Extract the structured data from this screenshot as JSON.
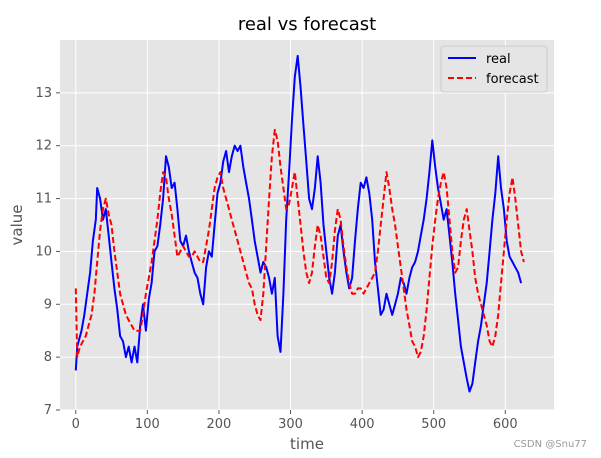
{
  "chart_data": {
    "type": "line",
    "title": "real vs forecast",
    "xlabel": "time",
    "ylabel": "value",
    "xlim": [
      -22,
      668
    ],
    "ylim": [
      7,
      14
    ],
    "xticks": [
      0,
      100,
      200,
      300,
      400,
      500,
      600
    ],
    "yticks": [
      7,
      8,
      9,
      10,
      11,
      12,
      13
    ],
    "grid": true,
    "legend_position": "top-right",
    "series": [
      {
        "name": "real",
        "color": "#0000ff",
        "style": "solid",
        "points": [
          [
            0,
            7.75
          ],
          [
            2,
            8.2
          ],
          [
            8,
            8.5
          ],
          [
            12,
            8.8
          ],
          [
            16,
            9.2
          ],
          [
            20,
            9.6
          ],
          [
            24,
            10.2
          ],
          [
            28,
            10.6
          ],
          [
            30,
            11.2
          ],
          [
            34,
            11.0
          ],
          [
            38,
            10.6
          ],
          [
            42,
            10.8
          ],
          [
            46,
            10.3
          ],
          [
            50,
            9.8
          ],
          [
            54,
            9.3
          ],
          [
            58,
            8.9
          ],
          [
            62,
            8.4
          ],
          [
            66,
            8.3
          ],
          [
            70,
            8.0
          ],
          [
            74,
            8.2
          ],
          [
            78,
            7.9
          ],
          [
            82,
            8.2
          ],
          [
            86,
            7.9
          ],
          [
            90,
            8.6
          ],
          [
            94,
            9.0
          ],
          [
            98,
            8.5
          ],
          [
            102,
            9.1
          ],
          [
            106,
            9.4
          ],
          [
            110,
            10.0
          ],
          [
            114,
            10.1
          ],
          [
            118,
            10.5
          ],
          [
            122,
            11.0
          ],
          [
            126,
            11.8
          ],
          [
            130,
            11.6
          ],
          [
            134,
            11.2
          ],
          [
            138,
            11.3
          ],
          [
            142,
            10.8
          ],
          [
            146,
            10.2
          ],
          [
            150,
            10.1
          ],
          [
            154,
            10.3
          ],
          [
            158,
            10.0
          ],
          [
            162,
            9.8
          ],
          [
            166,
            9.6
          ],
          [
            170,
            9.5
          ],
          [
            174,
            9.2
          ],
          [
            178,
            9.0
          ],
          [
            182,
            9.7
          ],
          [
            186,
            10.0
          ],
          [
            190,
            9.9
          ],
          [
            194,
            10.5
          ],
          [
            198,
            11.1
          ],
          [
            202,
            11.3
          ],
          [
            206,
            11.7
          ],
          [
            210,
            11.9
          ],
          [
            214,
            11.5
          ],
          [
            218,
            11.8
          ],
          [
            222,
            12.0
          ],
          [
            226,
            11.9
          ],
          [
            230,
            12.0
          ],
          [
            234,
            11.6
          ],
          [
            238,
            11.3
          ],
          [
            242,
            11.0
          ],
          [
            246,
            10.6
          ],
          [
            250,
            10.2
          ],
          [
            254,
            9.9
          ],
          [
            258,
            9.6
          ],
          [
            262,
            9.8
          ],
          [
            266,
            9.7
          ],
          [
            270,
            9.5
          ],
          [
            274,
            9.2
          ],
          [
            278,
            9.5
          ],
          [
            282,
            8.4
          ],
          [
            286,
            8.1
          ],
          [
            290,
            9.2
          ],
          [
            294,
            10.6
          ],
          [
            298,
            11.5
          ],
          [
            302,
            12.5
          ],
          [
            306,
            13.3
          ],
          [
            310,
            13.7
          ],
          [
            314,
            13.1
          ],
          [
            318,
            12.4
          ],
          [
            322,
            11.7
          ],
          [
            326,
            11.0
          ],
          [
            330,
            10.8
          ],
          [
            334,
            11.2
          ],
          [
            338,
            11.8
          ],
          [
            342,
            11.3
          ],
          [
            346,
            10.5
          ],
          [
            350,
            10.0
          ],
          [
            354,
            9.5
          ],
          [
            358,
            9.2
          ],
          [
            362,
            9.6
          ],
          [
            366,
            10.3
          ],
          [
            370,
            10.5
          ],
          [
            374,
            10.0
          ],
          [
            378,
            9.6
          ],
          [
            382,
            9.3
          ],
          [
            386,
            9.5
          ],
          [
            390,
            10.2
          ],
          [
            394,
            10.8
          ],
          [
            398,
            11.3
          ],
          [
            402,
            11.2
          ],
          [
            406,
            11.4
          ],
          [
            410,
            11.1
          ],
          [
            414,
            10.6
          ],
          [
            418,
            9.8
          ],
          [
            422,
            9.3
          ],
          [
            426,
            8.8
          ],
          [
            430,
            8.9
          ],
          [
            434,
            9.2
          ],
          [
            438,
            9.0
          ],
          [
            442,
            8.8
          ],
          [
            446,
            9.0
          ],
          [
            450,
            9.2
          ],
          [
            454,
            9.5
          ],
          [
            458,
            9.4
          ],
          [
            462,
            9.2
          ],
          [
            466,
            9.5
          ],
          [
            470,
            9.7
          ],
          [
            474,
            9.8
          ],
          [
            478,
            10.0
          ],
          [
            482,
            10.3
          ],
          [
            486,
            10.6
          ],
          [
            490,
            11.0
          ],
          [
            494,
            11.5
          ],
          [
            498,
            12.1
          ],
          [
            502,
            11.6
          ],
          [
            506,
            11.2
          ],
          [
            510,
            10.9
          ],
          [
            514,
            10.6
          ],
          [
            518,
            10.8
          ],
          [
            522,
            10.3
          ],
          [
            526,
            9.8
          ],
          [
            530,
            9.2
          ],
          [
            534,
            8.7
          ],
          [
            538,
            8.2
          ],
          [
            542,
            7.9
          ],
          [
            546,
            7.6
          ],
          [
            550,
            7.35
          ],
          [
            554,
            7.5
          ],
          [
            558,
            7.9
          ],
          [
            562,
            8.3
          ],
          [
            566,
            8.6
          ],
          [
            570,
            9.0
          ],
          [
            574,
            9.4
          ],
          [
            578,
            10.0
          ],
          [
            582,
            10.6
          ],
          [
            586,
            11.1
          ],
          [
            590,
            11.8
          ],
          [
            594,
            11.2
          ],
          [
            598,
            10.8
          ],
          [
            602,
            10.2
          ],
          [
            606,
            9.9
          ],
          [
            610,
            9.8
          ],
          [
            614,
            9.7
          ],
          [
            618,
            9.6
          ],
          [
            622,
            9.4
          ]
        ]
      },
      {
        "name": "forecast",
        "color": "#ff0000",
        "style": "dashed",
        "points": [
          [
            0,
            9.3
          ],
          [
            2,
            8.0
          ],
          [
            6,
            8.2
          ],
          [
            10,
            8.3
          ],
          [
            14,
            8.4
          ],
          [
            18,
            8.6
          ],
          [
            22,
            8.8
          ],
          [
            26,
            9.2
          ],
          [
            30,
            9.8
          ],
          [
            34,
            10.4
          ],
          [
            38,
            10.8
          ],
          [
            42,
            11.0
          ],
          [
            46,
            10.7
          ],
          [
            50,
            10.5
          ],
          [
            54,
            10.0
          ],
          [
            58,
            9.6
          ],
          [
            62,
            9.2
          ],
          [
            66,
            9.0
          ],
          [
            70,
            8.8
          ],
          [
            74,
            8.7
          ],
          [
            78,
            8.6
          ],
          [
            82,
            8.5
          ],
          [
            86,
            8.5
          ],
          [
            90,
            8.5
          ],
          [
            94,
            8.8
          ],
          [
            98,
            9.2
          ],
          [
            102,
            9.5
          ],
          [
            106,
            9.8
          ],
          [
            110,
            10.2
          ],
          [
            114,
            10.6
          ],
          [
            118,
            11.1
          ],
          [
            122,
            11.5
          ],
          [
            126,
            11.4
          ],
          [
            130,
            11.0
          ],
          [
            134,
            10.7
          ],
          [
            138,
            10.3
          ],
          [
            142,
            9.9
          ],
          [
            146,
            10.0
          ],
          [
            150,
            10.1
          ],
          [
            154,
            10.0
          ],
          [
            158,
            9.9
          ],
          [
            162,
            9.9
          ],
          [
            166,
            10.0
          ],
          [
            170,
            9.9
          ],
          [
            174,
            9.8
          ],
          [
            178,
            9.8
          ],
          [
            182,
            10.1
          ],
          [
            186,
            10.4
          ],
          [
            190,
            10.8
          ],
          [
            194,
            11.2
          ],
          [
            198,
            11.4
          ],
          [
            202,
            11.5
          ],
          [
            206,
            11.2
          ],
          [
            210,
            11.0
          ],
          [
            214,
            10.8
          ],
          [
            218,
            10.6
          ],
          [
            222,
            10.4
          ],
          [
            226,
            10.2
          ],
          [
            230,
            10.0
          ],
          [
            234,
            9.8
          ],
          [
            238,
            9.6
          ],
          [
            242,
            9.4
          ],
          [
            246,
            9.3
          ],
          [
            250,
            9.0
          ],
          [
            254,
            8.8
          ],
          [
            258,
            8.7
          ],
          [
            262,
            9.2
          ],
          [
            266,
            10.1
          ],
          [
            270,
            11.0
          ],
          [
            274,
            11.8
          ],
          [
            278,
            12.3
          ],
          [
            282,
            12.1
          ],
          [
            286,
            11.6
          ],
          [
            290,
            11.2
          ],
          [
            294,
            10.8
          ],
          [
            298,
            10.9
          ],
          [
            302,
            11.2
          ],
          [
            306,
            11.5
          ],
          [
            310,
            11.0
          ],
          [
            314,
            10.5
          ],
          [
            318,
            10.0
          ],
          [
            322,
            9.6
          ],
          [
            326,
            9.4
          ],
          [
            330,
            9.6
          ],
          [
            334,
            10.1
          ],
          [
            338,
            10.5
          ],
          [
            342,
            10.3
          ],
          [
            346,
            9.9
          ],
          [
            350,
            9.5
          ],
          [
            354,
            9.4
          ],
          [
            358,
            9.8
          ],
          [
            362,
            10.4
          ],
          [
            366,
            10.8
          ],
          [
            370,
            10.6
          ],
          [
            374,
            10.1
          ],
          [
            378,
            9.7
          ],
          [
            382,
            9.4
          ],
          [
            386,
            9.2
          ],
          [
            390,
            9.2
          ],
          [
            394,
            9.3
          ],
          [
            398,
            9.3
          ],
          [
            402,
            9.2
          ],
          [
            406,
            9.3
          ],
          [
            410,
            9.4
          ],
          [
            414,
            9.5
          ],
          [
            418,
            9.6
          ],
          [
            422,
            10.0
          ],
          [
            426,
            10.5
          ],
          [
            430,
            11.0
          ],
          [
            434,
            11.5
          ],
          [
            438,
            11.2
          ],
          [
            442,
            10.8
          ],
          [
            446,
            10.5
          ],
          [
            450,
            10.1
          ],
          [
            454,
            9.7
          ],
          [
            458,
            9.3
          ],
          [
            462,
            8.9
          ],
          [
            466,
            8.6
          ],
          [
            470,
            8.3
          ],
          [
            474,
            8.2
          ],
          [
            478,
            8.0
          ],
          [
            482,
            8.1
          ],
          [
            486,
            8.4
          ],
          [
            490,
            8.9
          ],
          [
            494,
            9.5
          ],
          [
            498,
            10.1
          ],
          [
            502,
            10.6
          ],
          [
            506,
            11.0
          ],
          [
            510,
            11.3
          ],
          [
            514,
            11.5
          ],
          [
            518,
            11.2
          ],
          [
            522,
            10.6
          ],
          [
            526,
            10.0
          ],
          [
            530,
            9.6
          ],
          [
            534,
            9.7
          ],
          [
            538,
            10.2
          ],
          [
            542,
            10.6
          ],
          [
            546,
            10.8
          ],
          [
            550,
            10.4
          ],
          [
            554,
            10.0
          ],
          [
            558,
            9.5
          ],
          [
            562,
            9.2
          ],
          [
            566,
            9.0
          ],
          [
            570,
            8.8
          ],
          [
            574,
            8.6
          ],
          [
            578,
            8.3
          ],
          [
            582,
            8.2
          ],
          [
            586,
            8.4
          ],
          [
            590,
            8.8
          ],
          [
            594,
            9.4
          ],
          [
            598,
            10.0
          ],
          [
            602,
            10.6
          ],
          [
            606,
            11.1
          ],
          [
            610,
            11.4
          ],
          [
            614,
            11.0
          ],
          [
            618,
            10.5
          ],
          [
            622,
            10.0
          ],
          [
            626,
            9.8
          ]
        ]
      }
    ]
  },
  "watermark": "CSDN @Snu77"
}
